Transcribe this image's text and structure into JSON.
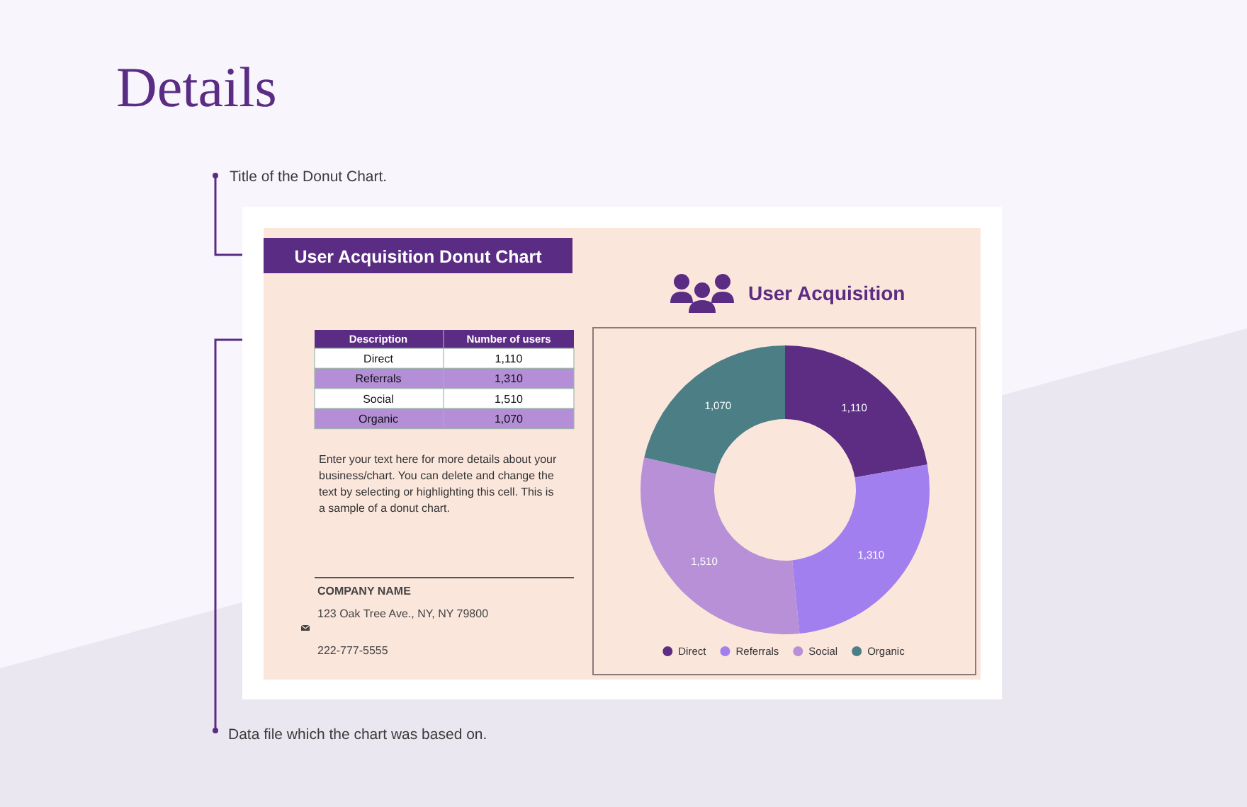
{
  "chart_data": {
    "type": "donut",
    "title": "User Acquisition",
    "categories": [
      "Direct",
      "Referrals",
      "Social",
      "Organic"
    ],
    "values": [
      1110,
      1310,
      1510,
      1070
    ],
    "value_labels": [
      "1,110",
      "1,310",
      "1,510",
      "1,070"
    ],
    "colors": [
      "#5c2d82",
      "#a27fee",
      "#b790d8",
      "#4c7e86"
    ],
    "legend": "bottom",
    "annotations": [
      "Details",
      "Title of the Donut Chart.",
      "User Acquisition Donut Chart",
      "Data file which the chart was based on.",
      "Description",
      "Number of users",
      "Enter your text here for more details about your business/chart. You can delete and change the text by selecting or highlighting this cell. This is a sample of a donut chart.",
      "COMPANY NAME",
      "123 Oak Tree Ave., NY, NY 79800",
      "222-777-5555"
    ]
  }
}
